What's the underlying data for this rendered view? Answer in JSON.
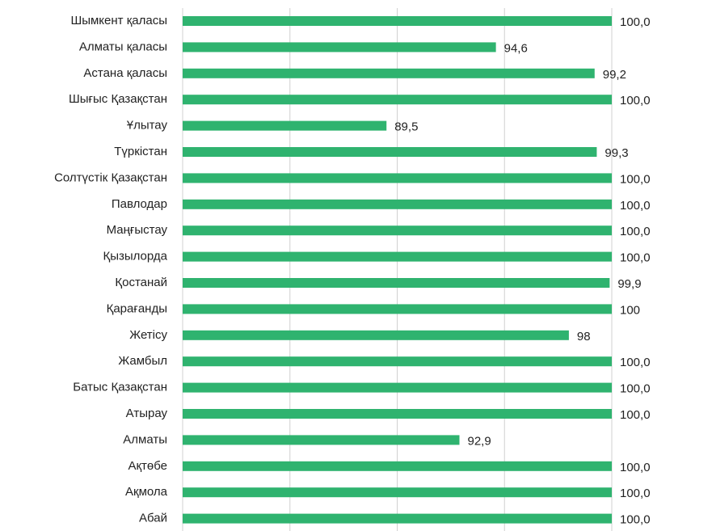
{
  "chart_data": {
    "type": "hbar",
    "categories": [
      "Шымкент қаласы",
      "Алматы қаласы",
      "Астана қаласы",
      "Шығыс Қазақстан",
      "Ұлытау",
      "Түркістан",
      "Солтүстік Қазақстан",
      "Павлодар",
      "Маңғыстау",
      "Қызылорда",
      "Қостанай",
      "Қарағанды",
      "Жетісу",
      "Жамбыл",
      "Батыс Қазақстан",
      "Атырау",
      "Алматы",
      "Ақтөбе",
      "Ақмола",
      "Абай"
    ],
    "values": [
      100,
      94.6,
      99.2,
      100,
      89.5,
      99.3,
      100,
      100,
      100,
      100,
      99.9,
      100,
      98,
      100,
      100,
      100,
      92.9,
      100,
      100,
      100
    ],
    "value_labels": [
      "100,0",
      "94,6",
      "99,2",
      "100,0",
      "89,5",
      "99,3",
      "100,0",
      "100,0",
      "100,0",
      "100,0",
      "99,9",
      "100",
      "98",
      "100,0",
      "100,0",
      "100,0",
      "92,9",
      "100,0",
      "100,0",
      "100,0"
    ],
    "color": "#2fb36f",
    "xlim": [
      80,
      100
    ],
    "xticks": [
      80,
      85,
      90,
      95,
      100
    ],
    "grid": true
  }
}
